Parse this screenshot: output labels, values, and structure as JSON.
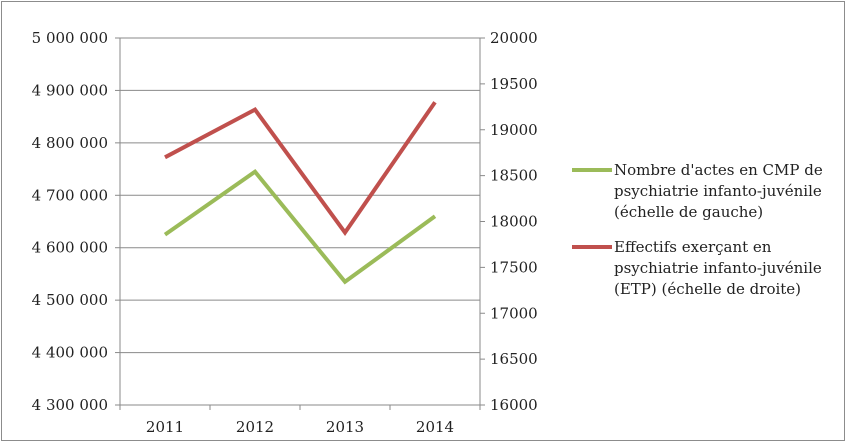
{
  "chart_data": {
    "type": "line",
    "title": "",
    "categories": [
      "2011",
      "2012",
      "2013",
      "2014"
    ],
    "y_left": {
      "min": 4300000,
      "max": 5000000,
      "step": 100000,
      "ticks": [
        "4 300 000",
        "4 400 000",
        "4 500 000",
        "4 600 000",
        "4 700 000",
        "4 800 000",
        "4 900 000",
        "5 000 000"
      ]
    },
    "y_right": {
      "min": 16000,
      "max": 20000,
      "step": 500,
      "ticks": [
        "16000",
        "16500",
        "17000",
        "17500",
        "18000",
        "18500",
        "19000",
        "19500",
        "20000"
      ]
    },
    "grid": true,
    "legend_position": "right",
    "series": [
      {
        "name": "Nombre d'actes en CMP de psychiatrie infanto-juvénile (échelle de gauche)",
        "legend_lines": [
          "Nombre d'actes en CMP de",
          "psychiatrie infanto-juvénile",
          "(échelle de gauche)"
        ],
        "axis": "left",
        "color": "#9bbb59",
        "values": [
          4625000,
          4745000,
          4535000,
          4660000
        ]
      },
      {
        "name": "Effectifs exerçant en psychiatrie infanto-juvénile (ETP) (échelle de droite)",
        "legend_lines": [
          "Effectifs exerçant en",
          "psychiatrie infanto-juvénile",
          "(ETP) (échelle de droite)"
        ],
        "axis": "right",
        "color": "#c0504d",
        "values": [
          18700,
          19220,
          17880,
          19300
        ]
      }
    ]
  }
}
